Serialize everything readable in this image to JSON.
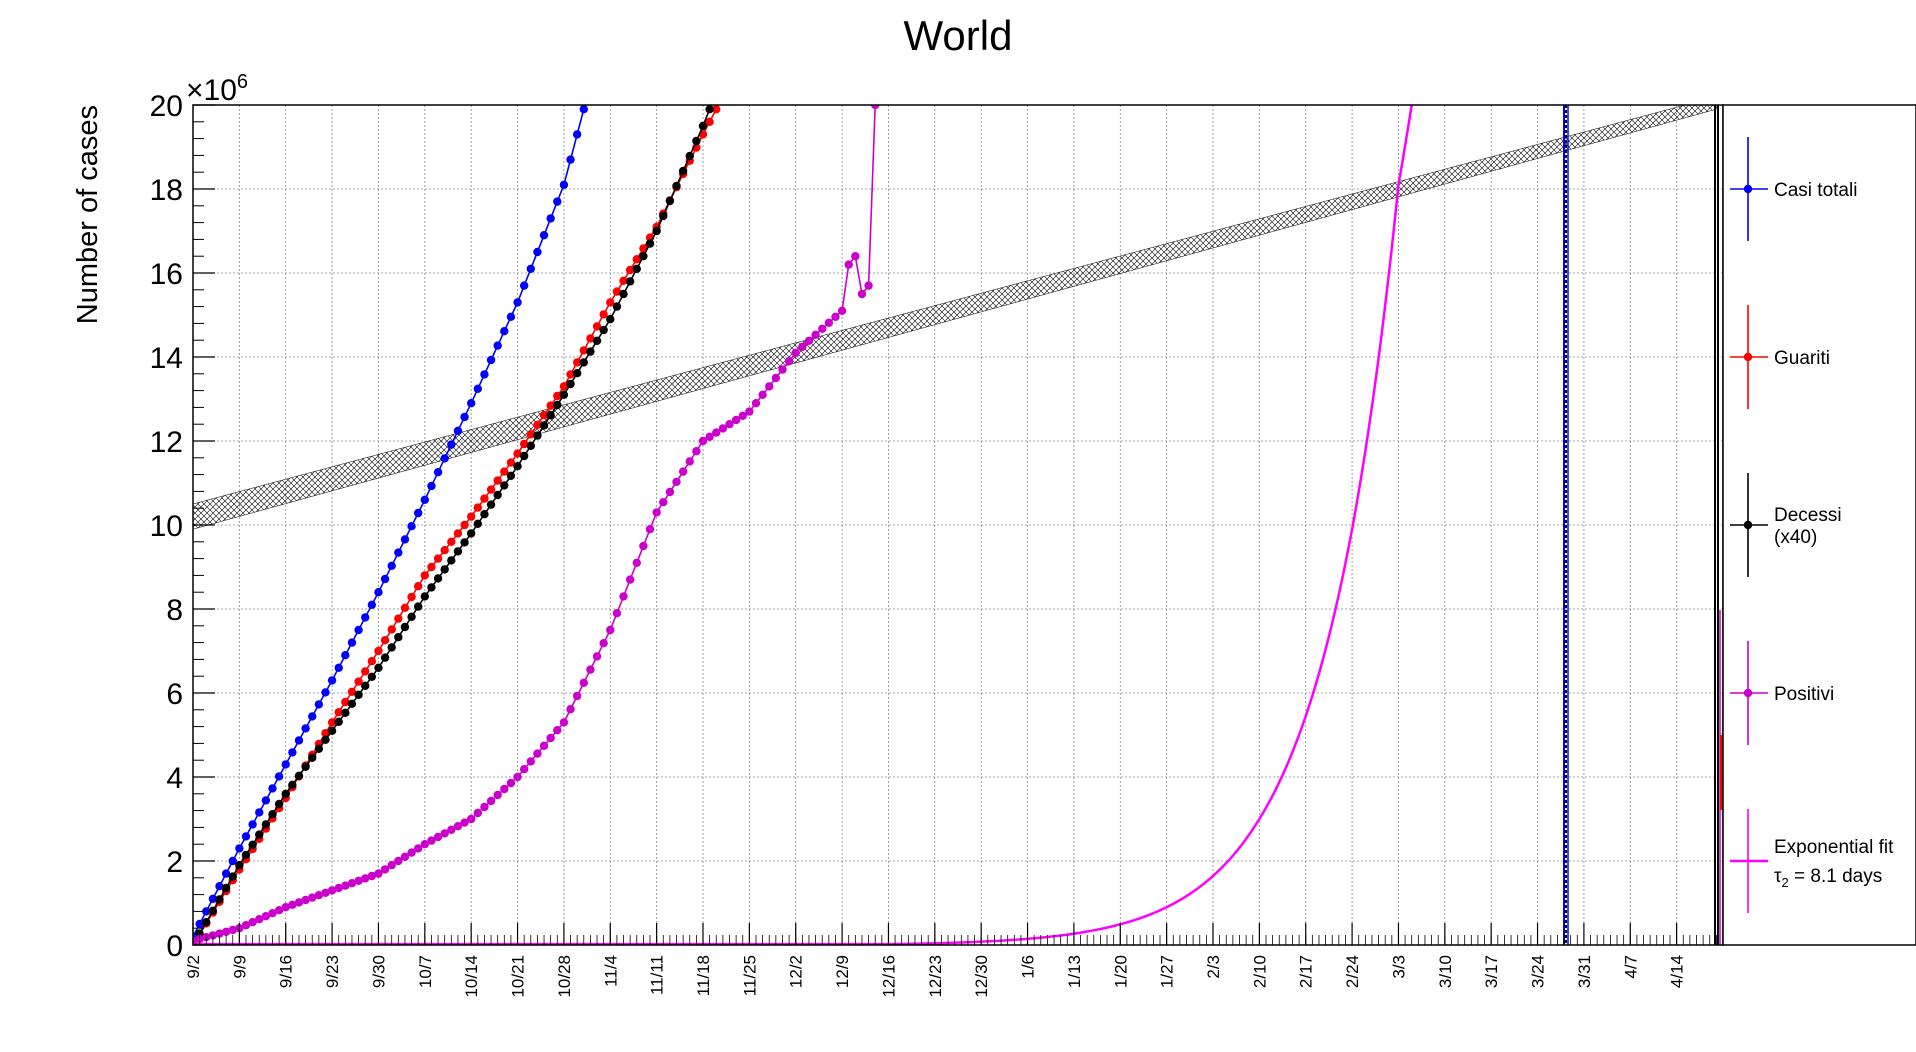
{
  "chart_data": {
    "type": "line",
    "title": "World",
    "ylabel": "Number of cases",
    "y_multiplier": "×10",
    "y_multiplier_exp": "6",
    "ylim": [
      0,
      20
    ],
    "y_ticks": [
      0,
      2,
      4,
      6,
      8,
      10,
      12,
      14,
      16,
      18,
      20
    ],
    "x_start_date": "9/2",
    "x_end_date": "4/21",
    "x_tick_labels": [
      "9/2",
      "9/9",
      "9/16",
      "9/23",
      "9/30",
      "10/7",
      "10/14",
      "10/21",
      "10/28",
      "11/4",
      "11/11",
      "11/18",
      "11/25",
      "12/2",
      "12/9",
      "12/16",
      "12/23",
      "12/30",
      "1/6",
      "1/13",
      "1/20",
      "1/27",
      "2/3",
      "2/10",
      "2/17",
      "2/24",
      "3/3",
      "3/10",
      "3/17",
      "3/24",
      "3/31",
      "4/7",
      "4/14"
    ],
    "grid": true,
    "legend_position": "right",
    "series": [
      {
        "name": "Casi totali",
        "color": "#0000ff",
        "marker": "circle",
        "x": [
          "9/2",
          "9/9",
          "9/16",
          "9/23",
          "9/30",
          "10/7",
          "10/14",
          "10/21",
          "10/28",
          "10/31"
        ],
        "y": [
          0.2,
          2.3,
          4.3,
          6.3,
          8.4,
          10.6,
          12.9,
          15.3,
          18.1,
          19.9
        ]
      },
      {
        "name": "Guariti",
        "color": "#ff0000",
        "marker": "circle",
        "x": [
          "9/2",
          "9/9",
          "9/16",
          "9/23",
          "9/30",
          "10/7",
          "10/14",
          "10/21",
          "10/28",
          "11/4",
          "11/11",
          "11/18",
          "11/20"
        ],
        "y": [
          0.0,
          1.8,
          3.5,
          5.3,
          7.0,
          8.8,
          10.2,
          11.7,
          13.3,
          15.3,
          17.1,
          19.3,
          19.9
        ]
      },
      {
        "name": "Decessi\n(x40)",
        "color": "#000000",
        "marker": "circle",
        "x": [
          "9/2",
          "9/9",
          "9/16",
          "9/23",
          "9/30",
          "10/7",
          "10/14",
          "10/21",
          "10/28",
          "11/4",
          "11/11",
          "11/18",
          "11/19"
        ],
        "y": [
          0.0,
          1.9,
          3.6,
          5.1,
          6.6,
          8.3,
          9.8,
          11.4,
          13.1,
          14.9,
          17.0,
          19.5,
          19.9
        ]
      },
      {
        "name": "Positivi",
        "color": "#cc00cc",
        "marker": "circle",
        "x": [
          "9/2",
          "9/9",
          "9/16",
          "9/23",
          "9/30",
          "10/7",
          "10/14",
          "10/21",
          "10/28",
          "11/4",
          "11/11",
          "11/18",
          "11/25",
          "12/2",
          "12/9",
          "12/10",
          "12/11",
          "12/12",
          "12/13",
          "12/14"
        ],
        "y": [
          0.1,
          0.4,
          0.9,
          1.3,
          1.7,
          2.4,
          3.0,
          4.0,
          5.3,
          7.5,
          10.3,
          12.0,
          12.7,
          14.1,
          15.1,
          16.2,
          16.4,
          15.5,
          15.7,
          20.0
        ]
      }
    ],
    "fit": {
      "name": "Exponential fit",
      "tau_symbol": "τ",
      "tau_sub": "2",
      "tau_value_text": " = 8.1 days",
      "color": "#ff00ff",
      "doubling_days": 8.1,
      "x": [
        "12/16",
        "12/30",
        "1/13",
        "1/27",
        "2/10",
        "2/24",
        "3/3",
        "3/5"
      ],
      "y": [
        0.02,
        0.08,
        0.27,
        0.9,
        3.0,
        9.9,
        18.1,
        20.0
      ]
    },
    "band": {
      "color": "#000000",
      "x": [
        "9/2",
        "4/20"
      ],
      "y_low": [
        9.9,
        19.9
      ],
      "y_high": [
        10.5,
        20.2
      ]
    }
  }
}
